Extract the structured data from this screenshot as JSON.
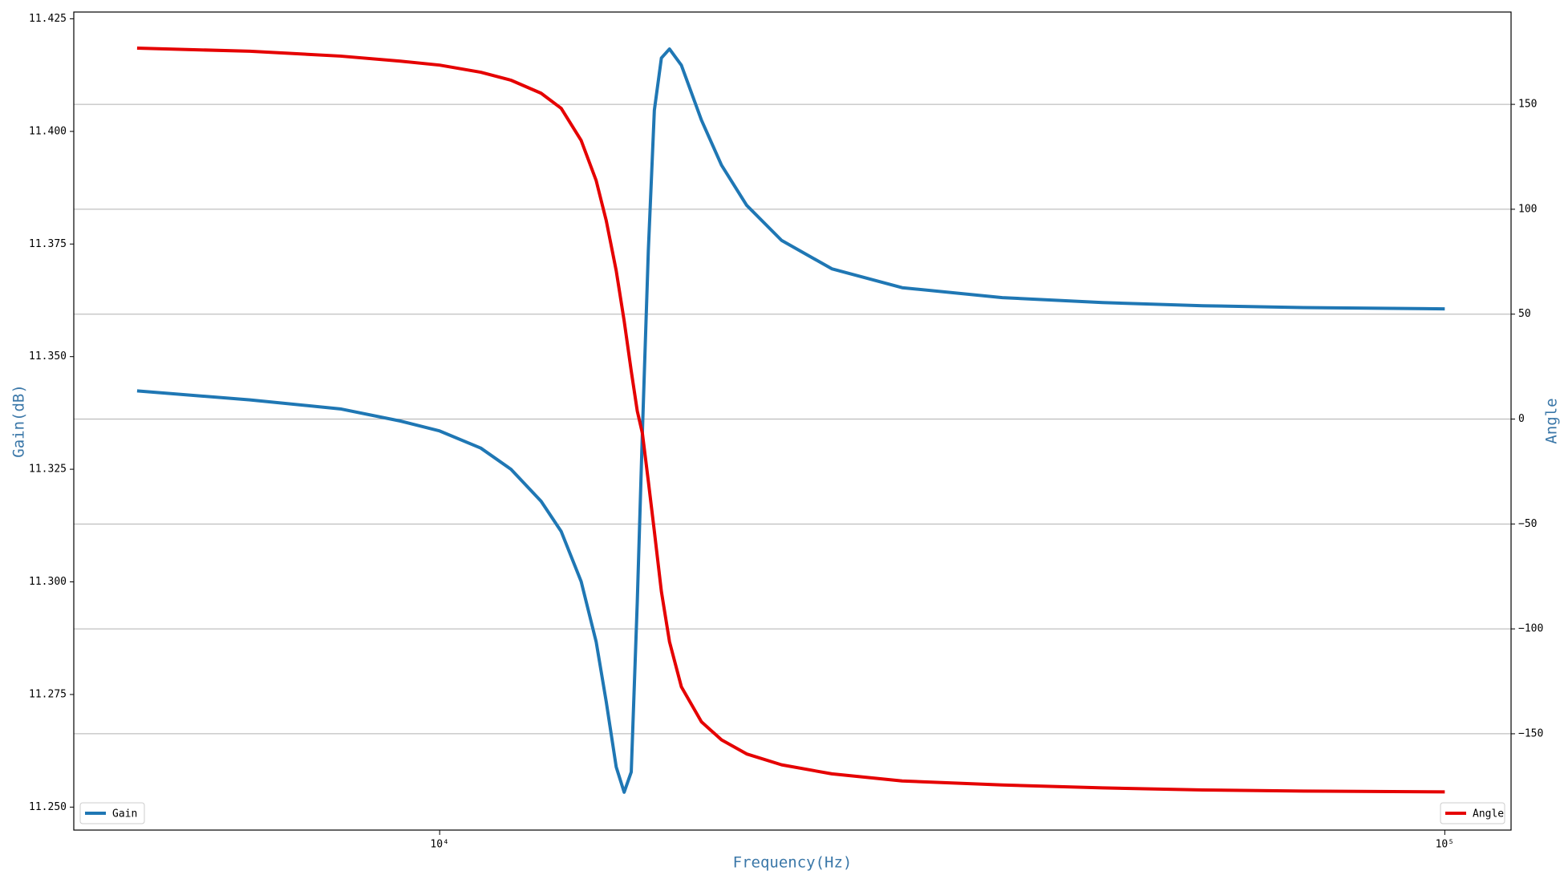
{
  "chart_data": {
    "type": "line",
    "x_label": "Frequency(Hz)",
    "y_label": "Gain(dB)",
    "y2_label": "Angle",
    "xscale": "log",
    "xlim": [
      4325,
      116400
    ],
    "xticks": [
      {
        "value": 10000,
        "label": "10⁴"
      },
      {
        "value": 100000,
        "label": "10⁵"
      }
    ],
    "ylim": [
      11.2449,
      11.4265
    ],
    "yticks": [
      {
        "value": 11.25,
        "label": "11.250"
      },
      {
        "value": 11.275,
        "label": "11.275"
      },
      {
        "value": 11.3,
        "label": "11.300"
      },
      {
        "value": 11.325,
        "label": "11.325"
      },
      {
        "value": 11.35,
        "label": "11.350"
      },
      {
        "value": 11.375,
        "label": "11.375"
      },
      {
        "value": 11.4,
        "label": "11.400"
      },
      {
        "value": 11.425,
        "label": "11.425"
      }
    ],
    "y2lim": [
      -195.9,
      194
    ],
    "y2ticks": [
      {
        "value": -150,
        "label": "−150"
      },
      {
        "value": -100,
        "label": "−100"
      },
      {
        "value": -50,
        "label": "−50"
      },
      0,
      50,
      100,
      150
    ],
    "grid": "y2",
    "x": [
      5000,
      6477,
      7965,
      9141,
      10000,
      10987,
      11775,
      12616,
      13210,
      13828,
      14312,
      14646,
      14985,
      15260,
      15510,
      15726,
      15910,
      16129,
      16353,
      16619,
      16930,
      17397,
      18216,
      19073,
      20203,
      21887,
      24557,
      28850,
      36290,
      45660,
      57470,
      72320,
      100000
    ],
    "series": [
      {
        "name": "Gain",
        "color": "#1f77b4",
        "axis": "y",
        "legend": "lower left",
        "values": [
          11.3424,
          11.3404,
          11.3384,
          11.3357,
          11.3335,
          11.3297,
          11.325,
          11.3179,
          11.3112,
          11.3001,
          11.2867,
          11.2734,
          11.2589,
          11.2533,
          11.2578,
          11.2956,
          11.333,
          11.3735,
          11.4047,
          11.4163,
          11.4183,
          11.4147,
          11.4025,
          11.3925,
          11.3836,
          11.3758,
          11.3695,
          11.3653,
          11.3631,
          11.362,
          11.3613,
          11.3609,
          11.3606
        ]
      },
      {
        "name": "Angle",
        "color": "#e50000",
        "axis": "y2",
        "legend": "lower right",
        "values": [
          176.8,
          175.3,
          173.0,
          170.6,
          168.7,
          165.3,
          161.5,
          155.3,
          148.1,
          132.8,
          113.7,
          94.6,
          70.7,
          46.8,
          22.9,
          3.8,
          -6.7,
          -29.6,
          -53.5,
          -82.2,
          -106.1,
          -127.6,
          -144.3,
          -152.9,
          -159.6,
          -164.8,
          -169.1,
          -172.5,
          -174.4,
          -175.8,
          -176.8,
          -177.3,
          -177.7
        ]
      }
    ]
  }
}
